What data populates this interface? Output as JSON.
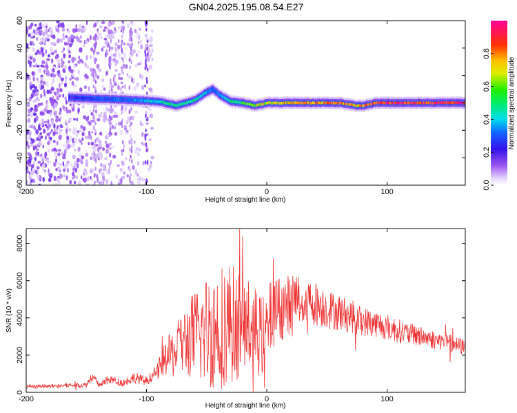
{
  "title": "GN04.2025.195.08.54.E27",
  "colors": {
    "snr_line": "#ee3333",
    "axis": "#000000",
    "background": "#ffffff"
  },
  "chart_data": [
    {
      "type": "heatmap",
      "xlabel": "Height of straight line (km)",
      "ylabel": "Frequency (Hz)",
      "xlim": [
        -200,
        165
      ],
      "ylim": [
        -60,
        60
      ],
      "x_ticks": [
        -200,
        -100,
        0,
        100
      ],
      "y_ticks": [
        -60,
        -40,
        -20,
        0,
        20,
        40,
        60
      ],
      "colorbar": {
        "label": "Normalized spectral amplitude",
        "range": [
          0,
          1
        ],
        "ticks": [
          0.0,
          0.2,
          0.4,
          0.6,
          0.8
        ],
        "colormap": "rainbow (white-violet-blue-cyan-green-yellow-red-magenta)"
      },
      "ridge": {
        "x": [
          -165,
          -140,
          -110,
          -90,
          -75,
          -60,
          -50,
          -45,
          -40,
          -30,
          -20,
          -10,
          0,
          30,
          60,
          75,
          80,
          90,
          120,
          165
        ],
        "freq": [
          4,
          3,
          2,
          1,
          -2,
          2,
          8,
          10,
          6,
          1,
          0,
          -2,
          0,
          0,
          0,
          -2,
          -2,
          0,
          0,
          0
        ],
        "amplitude": [
          0.2,
          0.3,
          0.35,
          0.45,
          0.5,
          0.5,
          0.4,
          0.3,
          0.35,
          0.5,
          0.6,
          0.7,
          0.75,
          0.8,
          0.85,
          0.8,
          0.85,
          0.9,
          0.95,
          1.0
        ]
      },
      "noise_region": {
        "x_range": [
          -200,
          -95
        ],
        "freq_range": [
          -60,
          60
        ]
      }
    },
    {
      "type": "line",
      "xlabel": "Height of straight line (km)",
      "ylabel": "SNR (10 * v/v)",
      "xlim": [
        -200,
        165
      ],
      "ylim": [
        0,
        8800
      ],
      "x_ticks": [
        -200,
        -100,
        0,
        100
      ],
      "y_ticks": [
        0,
        2000,
        4000,
        6000,
        8000
      ],
      "series": [
        {
          "color": "#ee3333",
          "x": [
            -200,
            -175,
            -150,
            -145,
            -140,
            -130,
            -120,
            -110,
            -100,
            -95,
            -90,
            -85,
            -80,
            -75,
            -70,
            -65,
            -60,
            -55,
            -50,
            -45,
            -40,
            -35,
            -30,
            -25,
            -20,
            -15,
            -10,
            -5,
            0,
            5,
            10,
            15,
            20,
            25,
            30,
            40,
            50,
            60,
            70,
            80,
            90,
            100,
            110,
            120,
            130,
            140,
            150,
            165
          ],
          "y": [
            300,
            350,
            400,
            900,
            400,
            700,
            500,
            800,
            600,
            900,
            1200,
            1800,
            2000,
            2200,
            2600,
            2900,
            3000,
            3200,
            3300,
            3400,
            3500,
            3700,
            3800,
            3600,
            3600,
            3500,
            3300,
            3000,
            3200,
            4400,
            4500,
            4600,
            4800,
            5000,
            4900,
            4800,
            4500,
            4300,
            4100,
            3800,
            3700,
            3500,
            3300,
            3100,
            3000,
            2800,
            2700,
            2400
          ],
          "amplitude": [
            100,
            100,
            150,
            300,
            150,
            250,
            200,
            300,
            250,
            300,
            500,
            900,
            1200,
            1500,
            1800,
            2200,
            2500,
            2800,
            3100,
            3300,
            3500,
            3400,
            3300,
            3000,
            2800,
            2600,
            2400,
            2200,
            2200,
            2000,
            1800,
            1700,
            1600,
            1500,
            1400,
            1200,
            1100,
            1000,
            900,
            800,
            750,
            700,
            650,
            600,
            550,
            500,
            500,
            450
          ]
        }
      ]
    }
  ]
}
